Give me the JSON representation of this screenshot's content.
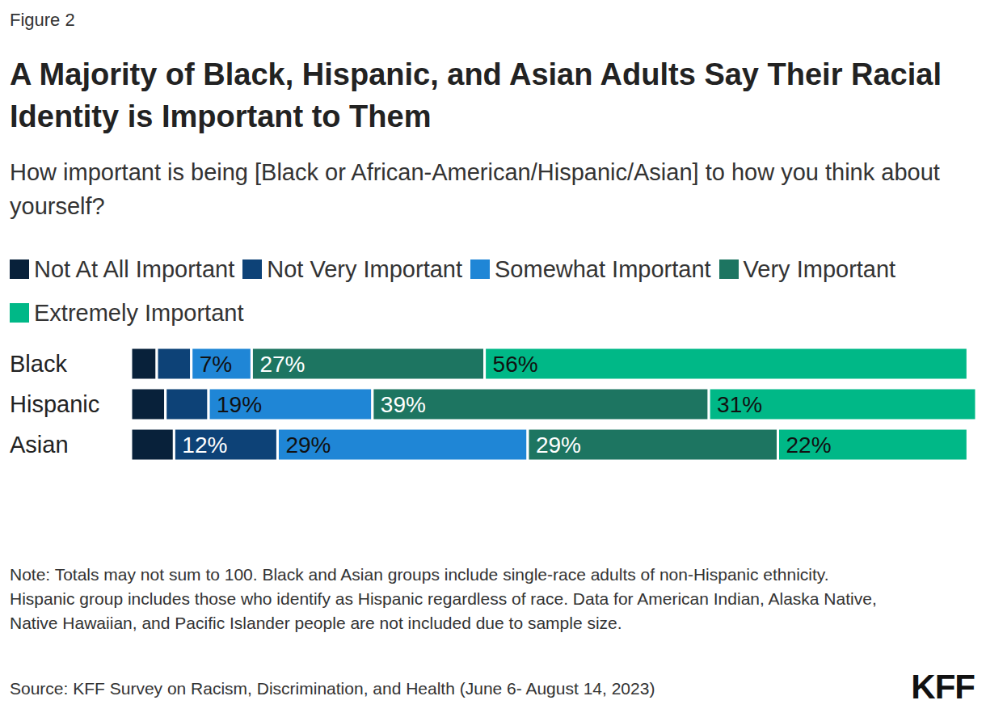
{
  "chart_data": {
    "type": "bar",
    "orientation": "horizontal",
    "stacked": true,
    "data_labels": true,
    "tick_labels": "y",
    "figure_label": "Figure 2",
    "title": "A Majority of Black, Hispanic, and Asian Adults Say Their Racial Identity is Important to Them",
    "subtitle": "How important is being [Black or African-American/Hispanic/Asian] to how you think about yourself?",
    "categories": [
      "Black",
      "Hispanic",
      "Asian"
    ],
    "xlim": [
      0,
      98
    ],
    "series": [
      {
        "name": "Not At All Important",
        "color": "#08213a",
        "values": [
          3,
          4,
          5
        ],
        "value_labels": [
          null,
          null,
          null
        ]
      },
      {
        "name": "Not Very Important",
        "color": "#0d4277",
        "values": [
          4,
          5,
          12
        ],
        "value_labels": [
          null,
          null,
          "12%"
        ]
      },
      {
        "name": "Somewhat Important",
        "color": "#1f86d6",
        "values": [
          7,
          19,
          29
        ],
        "value_labels": [
          "7%",
          "19%",
          "29%"
        ]
      },
      {
        "name": "Very Important",
        "color": "#1d7561",
        "values": [
          27,
          39,
          29
        ],
        "value_labels": [
          "27%",
          "39%",
          "29%"
        ]
      },
      {
        "name": "Extremely Important",
        "color": "#00b887",
        "values": [
          56,
          31,
          22
        ],
        "value_labels": [
          "56%",
          "31%",
          "22%"
        ]
      }
    ],
    "note": "Note: Totals may not sum to 100. Black and Asian groups include single-race adults of non-Hispanic ethnicity. Hispanic group includes those who identify as Hispanic regardless of race. Data for American Indian, Alaska Native, Native Hawaiian, and Pacific Islander people are not included due to sample size.",
    "source": "Source: KFF Survey on Racism, Discrimination, and Health (June 6- August 14, 2023)",
    "brand": "KFF"
  }
}
